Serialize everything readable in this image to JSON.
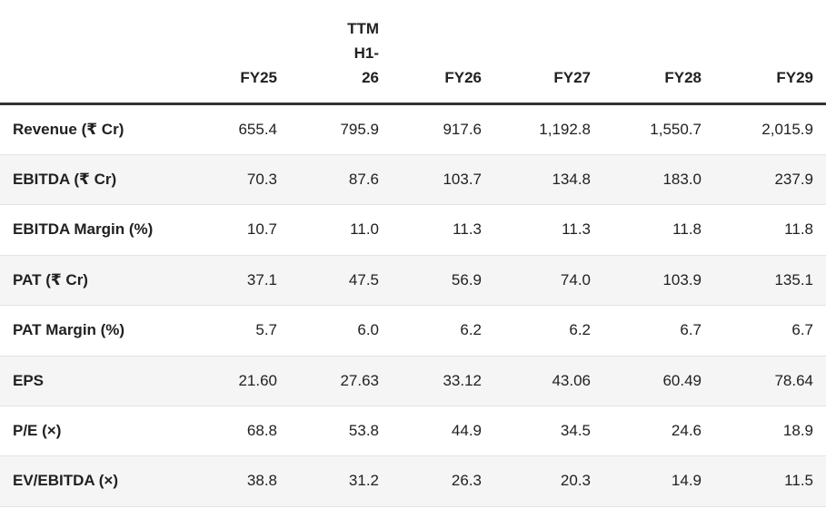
{
  "colors": {
    "text": "#212121",
    "header_rule": "#333333",
    "row_divider": "#e3e3e3",
    "alt_row_bg": "#f5f5f5",
    "background": "#ffffff"
  },
  "ui": {
    "ttm_header_display": "TTM\nH1-\n26"
  },
  "chart_data": {
    "type": "table",
    "title": "",
    "columns": [
      "",
      "FY25",
      "TTM H1-26",
      "FY26",
      "FY27",
      "FY28",
      "FY29"
    ],
    "rows": [
      {
        "label": "Revenue (₹ Cr)",
        "values": [
          "655.4",
          "795.9",
          "917.6",
          "1,192.8",
          "1,550.7",
          "2,015.9"
        ]
      },
      {
        "label": "EBITDA (₹ Cr)",
        "values": [
          "70.3",
          "87.6",
          "103.7",
          "134.8",
          "183.0",
          "237.9"
        ]
      },
      {
        "label": "EBITDA Margin (%)",
        "values": [
          "10.7",
          "11.0",
          "11.3",
          "11.3",
          "11.8",
          "11.8"
        ]
      },
      {
        "label": "PAT (₹ Cr)",
        "values": [
          "37.1",
          "47.5",
          "56.9",
          "74.0",
          "103.9",
          "135.1"
        ]
      },
      {
        "label": "PAT Margin (%)",
        "values": [
          "5.7",
          "6.0",
          "6.2",
          "6.2",
          "6.7",
          "6.7"
        ]
      },
      {
        "label": "EPS",
        "values": [
          "21.60",
          "27.63",
          "33.12",
          "43.06",
          "60.49",
          "78.64"
        ]
      },
      {
        "label": "P/E (×)",
        "values": [
          "68.8",
          "53.8",
          "44.9",
          "34.5",
          "24.6",
          "18.9"
        ]
      },
      {
        "label": "EV/EBITDA (×)",
        "values": [
          "38.8",
          "31.2",
          "26.3",
          "20.3",
          "14.9",
          "11.5"
        ]
      }
    ]
  }
}
